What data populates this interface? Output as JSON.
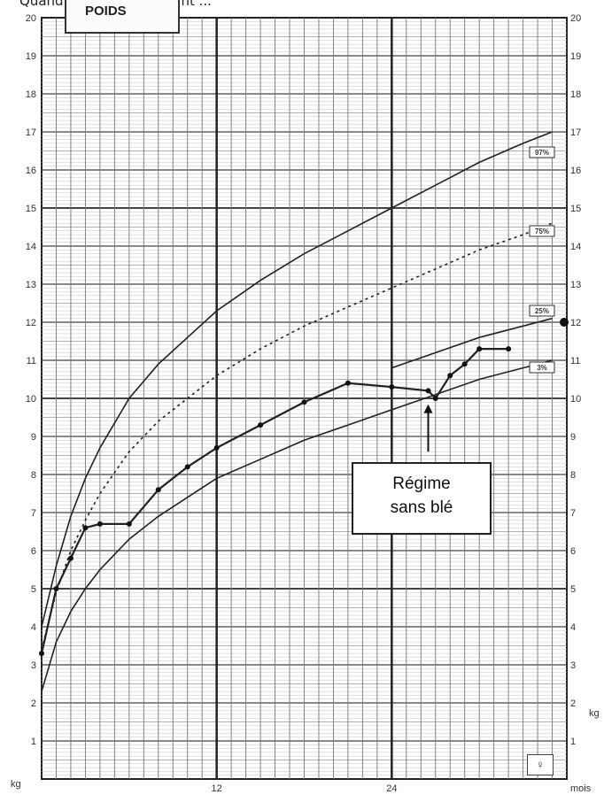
{
  "caption": "Quand le poids de l'enfant ...",
  "header": {
    "title": "POIDS"
  },
  "annotation": {
    "text": "Régime\nsans blé"
  },
  "sex_symbol": "♀",
  "y_unit_label": "kg",
  "x_unit_label": "mois",
  "chart_data": {
    "type": "line",
    "title": "POIDS",
    "xlabel": "mois",
    "ylabel": "kg",
    "xlim": [
      0,
      36
    ],
    "ylim": [
      0,
      20
    ],
    "y_ticks": [
      1,
      2,
      3,
      4,
      5,
      6,
      7,
      8,
      9,
      10,
      11,
      12,
      13,
      14,
      15,
      16,
      17,
      18,
      19,
      20
    ],
    "x_ticks_printed": [
      "12",
      "24"
    ],
    "grid": true,
    "series": [
      {
        "name": "97%",
        "style": "solid",
        "x": [
          0,
          1,
          2,
          3,
          4,
          6,
          8,
          10,
          12,
          15,
          18,
          21,
          24,
          27,
          30,
          33,
          35
        ],
        "y": [
          4.0,
          5.6,
          6.9,
          7.9,
          8.7,
          10.0,
          10.9,
          11.6,
          12.3,
          13.1,
          13.8,
          14.4,
          15.0,
          15.6,
          16.2,
          16.7,
          17.0
        ]
      },
      {
        "name": "75%",
        "style": "dashed",
        "x": [
          0,
          1,
          2,
          3,
          4,
          6,
          8,
          10,
          12,
          15,
          18,
          21,
          24,
          27,
          30,
          33,
          35
        ],
        "y": [
          3.4,
          4.9,
          6.0,
          6.8,
          7.5,
          8.6,
          9.4,
          10.0,
          10.6,
          11.3,
          11.9,
          12.4,
          12.9,
          13.4,
          13.9,
          14.3,
          14.6
        ]
      },
      {
        "name": "25%",
        "style": "solid",
        "x": [
          24,
          27,
          30,
          33,
          35
        ],
        "y": [
          10.8,
          11.2,
          11.6,
          11.9,
          12.1
        ]
      },
      {
        "name": "3%",
        "style": "solid",
        "x": [
          0,
          1,
          2,
          3,
          4,
          6,
          8,
          10,
          12,
          15,
          18,
          21,
          24,
          27,
          30,
          33,
          35
        ],
        "y": [
          2.3,
          3.6,
          4.4,
          5.0,
          5.5,
          6.3,
          6.9,
          7.4,
          7.9,
          8.4,
          8.9,
          9.3,
          9.7,
          10.1,
          10.5,
          10.8,
          11.0
        ]
      },
      {
        "name": "",
        "style": "measured",
        "x": [
          0,
          1,
          2,
          3,
          4,
          6,
          8,
          10,
          12,
          15,
          18,
          21,
          24,
          26.5,
          27,
          28,
          29,
          30,
          32
        ],
        "y": [
          3.3,
          5.0,
          5.8,
          6.6,
          6.7,
          6.7,
          7.6,
          8.2,
          8.7,
          9.3,
          9.9,
          10.4,
          10.3,
          10.2,
          10.0,
          10.6,
          10.9,
          11.3,
          11.3
        ]
      }
    ],
    "right_edge_point": {
      "x": 36,
      "y": 12.0
    },
    "annotation_arrow": {
      "x": 26.5,
      "y_from": 8.6,
      "y_to": 9.8
    }
  }
}
